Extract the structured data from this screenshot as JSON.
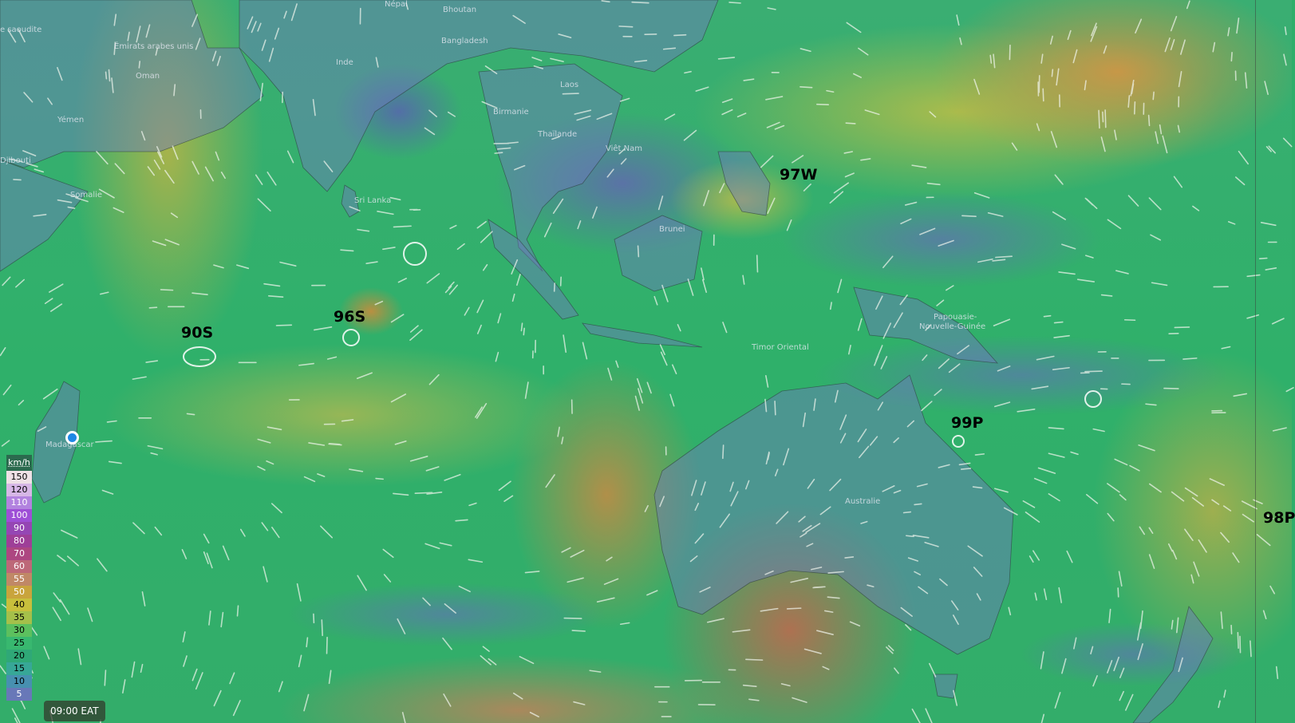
{
  "map": {
    "layer": "wind",
    "country_labels": [
      {
        "name": "e saoudite"
      },
      {
        "name": "Émirats arabes unis"
      },
      {
        "name": "Oman"
      },
      {
        "name": "Yémen"
      },
      {
        "name": "Djibouti"
      },
      {
        "name": "Somalie"
      },
      {
        "name": "Népal"
      },
      {
        "name": "Bhoutan"
      },
      {
        "name": "Bangladesh"
      },
      {
        "name": "Inde"
      },
      {
        "name": "Sri Lanka"
      },
      {
        "name": "Birmanie"
      },
      {
        "name": "Laos"
      },
      {
        "name": "Thaïlande"
      },
      {
        "name": "Viêt Nam"
      },
      {
        "name": "Brunei"
      },
      {
        "name": "Papouasie-"
      },
      {
        "name": "Nouvelle-Guinée"
      },
      {
        "name": "Timor Oriental"
      },
      {
        "name": "Australie"
      },
      {
        "name": "Madagascar"
      }
    ],
    "storm_labels": [
      "90S",
      "96S",
      "97W",
      "99P",
      "98P"
    ],
    "location_marker_color": "#1e88e5"
  },
  "legend": {
    "unit": "km/h",
    "rows": [
      {
        "value": "150",
        "color": "#efe1e6",
        "text": "#000"
      },
      {
        "value": "120",
        "color": "#d6b7e6",
        "text": "#000"
      },
      {
        "value": "110",
        "color": "#b283df",
        "text": "#fff"
      },
      {
        "value": "100",
        "color": "#9e4fd6",
        "text": "#fff"
      },
      {
        "value": "90",
        "color": "#9546b4",
        "text": "#fff"
      },
      {
        "value": "80",
        "color": "#9e3f98",
        "text": "#fff"
      },
      {
        "value": "70",
        "color": "#ad4781",
        "text": "#fff"
      },
      {
        "value": "60",
        "color": "#bd6878",
        "text": "#fff"
      },
      {
        "value": "55",
        "color": "#c08866",
        "text": "#fff"
      },
      {
        "value": "50",
        "color": "#c9a43c",
        "text": "#fff"
      },
      {
        "value": "40",
        "color": "#c8bf3c",
        "text": "#000"
      },
      {
        "value": "35",
        "color": "#a5c04a",
        "text": "#000"
      },
      {
        "value": "30",
        "color": "#5cc05e",
        "text": "#000"
      },
      {
        "value": "25",
        "color": "#38b86f",
        "text": "#000"
      },
      {
        "value": "20",
        "color": "#2fa877",
        "text": "#000"
      },
      {
        "value": "15",
        "color": "#37a797",
        "text": "#000"
      },
      {
        "value": "10",
        "color": "#4790b0",
        "text": "#000"
      },
      {
        "value": "5",
        "color": "#6878b8",
        "text": "#fff"
      }
    ]
  },
  "time": "09:00 EAT"
}
